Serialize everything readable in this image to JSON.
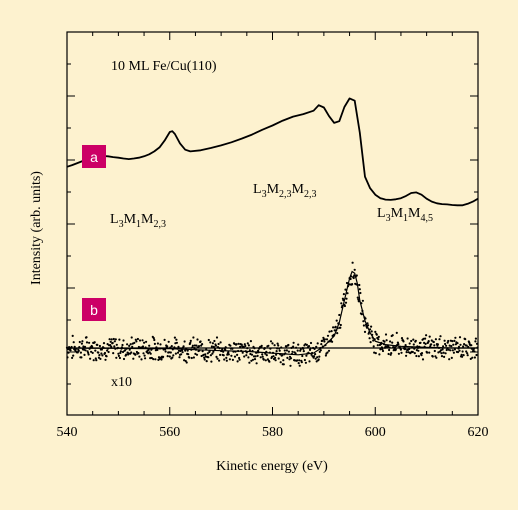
{
  "chart_data": {
    "type": "line",
    "title": "10 ML Fe/Cu(110)",
    "xlabel": "Kinetic energy (eV)",
    "ylabel": "Intensity (arb. units)",
    "xlim": [
      540,
      620
    ],
    "xticks": [
      540,
      560,
      580,
      600,
      620
    ],
    "grid": false,
    "background_color": "#fdf2cf",
    "badge_color": "#cc0066",
    "panels": [
      {
        "badge": "a",
        "series": [
          {
            "kind": "line",
            "x": [
              540,
              541,
              542,
              543,
              544,
              545,
              546,
              547,
              548,
              549,
              550,
              551,
              552,
              553,
              554,
              555,
              556,
              557,
              558,
              559,
              560,
              560.5,
              561,
              562,
              563,
              564,
              566,
              568,
              570,
              572,
              574,
              576,
              578,
              580,
              582,
              584,
              586,
              588,
              589,
              590,
              591,
              592,
              593,
              594,
              595,
              596,
              597,
              598,
              599,
              600,
              601,
              602,
              603,
              604,
              605,
              606,
              607,
              608,
              609,
              610,
              611,
              612,
              613,
              614,
              615,
              616,
              617,
              618,
              619,
              620
            ],
            "y": [
              3.2,
              3.26,
              3.33,
              3.4,
              3.46,
              3.52,
              3.56,
              3.58,
              3.57,
              3.54,
              3.52,
              3.49,
              3.47,
              3.49,
              3.52,
              3.57,
              3.64,
              3.74,
              3.88,
              4.12,
              4.42,
              4.45,
              4.35,
              4.02,
              3.8,
              3.74,
              3.78,
              3.86,
              3.95,
              4.06,
              4.19,
              4.33,
              4.5,
              4.65,
              4.82,
              4.96,
              5.05,
              5.17,
              5.36,
              5.28,
              4.98,
              4.74,
              4.8,
              5.3,
              5.6,
              5.52,
              4.4,
              2.85,
              2.45,
              2.22,
              2.1,
              2.05,
              2.04,
              2.06,
              2.1,
              2.18,
              2.28,
              2.3,
              2.22,
              2.08,
              1.98,
              1.92,
              1.89,
              1.88,
              1.86,
              1.85,
              1.85,
              1.9,
              1.98,
              2.08
            ]
          }
        ],
        "labels": [
          "L3M1M2,3",
          "L3M2,3M2,3",
          "L3M1M4,5"
        ]
      },
      {
        "badge": "b",
        "multiplier_label": "x10",
        "series": [
          {
            "kind": "scatter",
            "x": [
              540,
              545,
              550,
              555,
              560,
              565,
              570,
              575,
              580,
              585,
              588,
              590,
              592,
              593,
              594,
              595,
              595.5,
              596,
              596.5,
              597,
              598,
              599,
              600,
              602,
              605,
              610,
              615,
              620
            ],
            "y": [
              0.0,
              -0.01,
              -0.01,
              -0.02,
              -0.02,
              -0.05,
              -0.08,
              -0.1,
              -0.15,
              -0.2,
              -0.15,
              0.05,
              0.35,
              0.75,
              1.4,
              2.05,
              2.25,
              2.2,
              1.9,
              1.4,
              0.8,
              0.45,
              0.2,
              0.1,
              0.05,
              0.02,
              0.0,
              0.0
            ]
          },
          {
            "kind": "line",
            "x": [
              540,
              620
            ],
            "y": [
              0.0,
              0.0
            ]
          }
        ]
      }
    ]
  }
}
